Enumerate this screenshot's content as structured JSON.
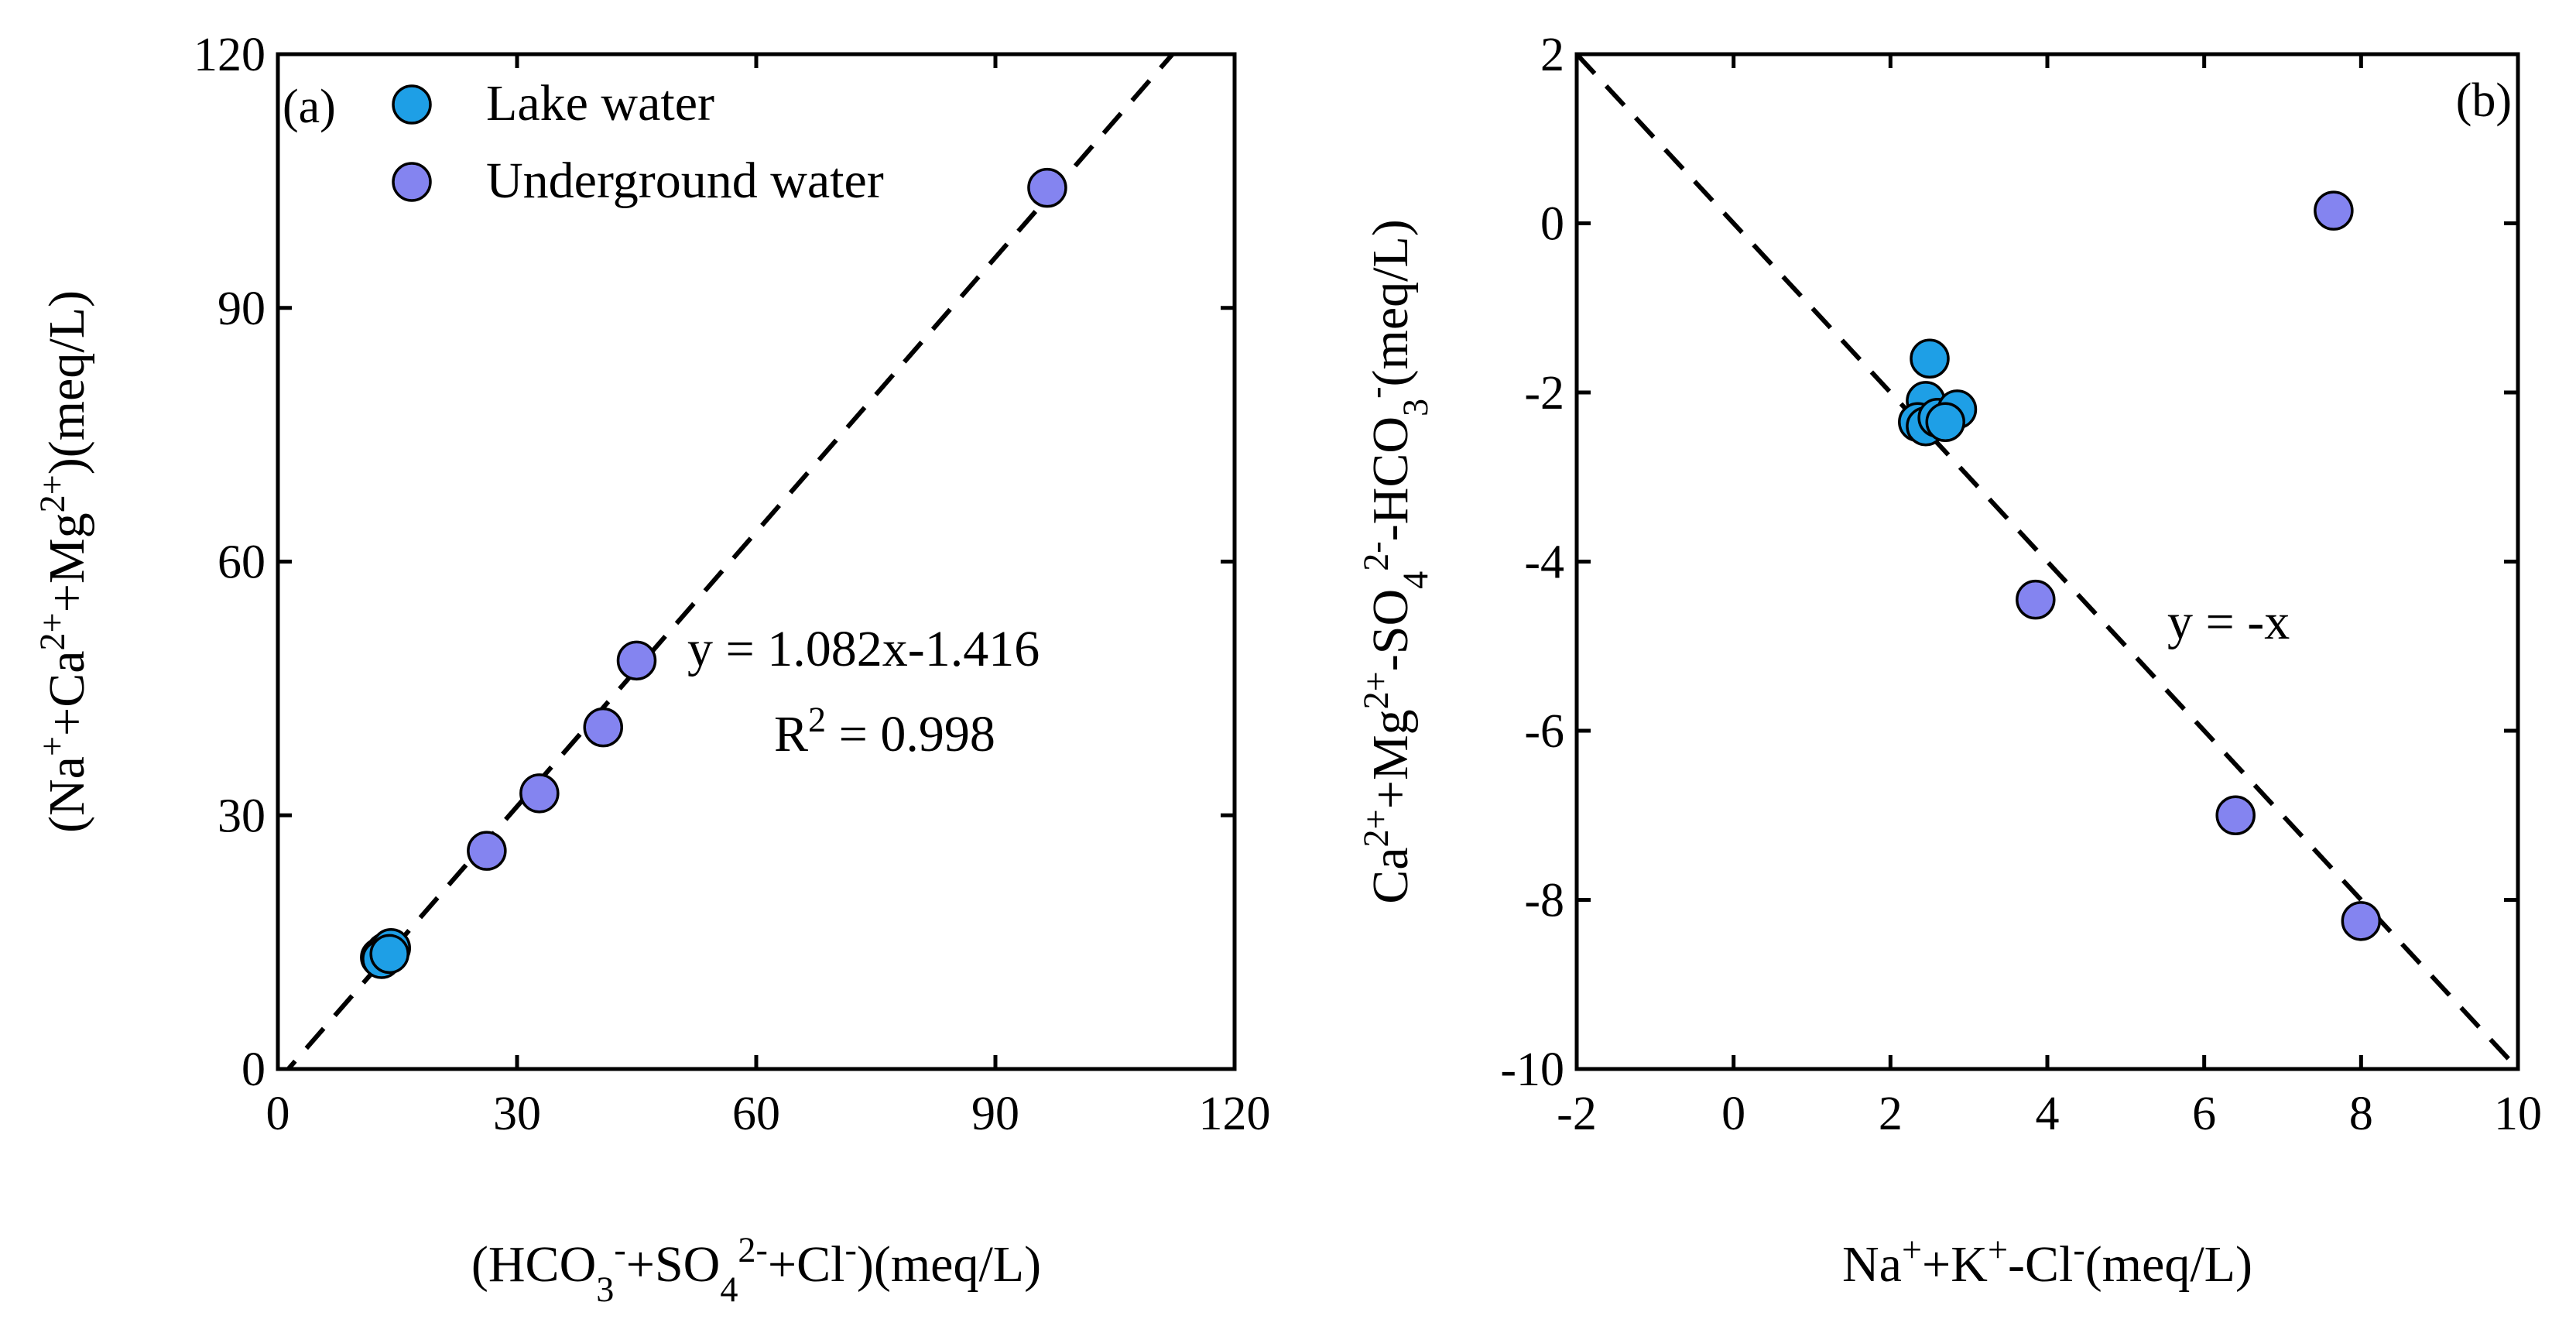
{
  "colors": {
    "lake": "#1E9FE6",
    "underground": "#8484F0",
    "axis": "#000000",
    "background": "#FFFFFF"
  },
  "chart_data": [
    {
      "type": "scatter",
      "panel_label": "(a)",
      "xlabel": {
        "parts": [
          {
            "t": "(HCO"
          },
          {
            "t": "3",
            "s": "sub"
          },
          {
            "t": "-",
            "s": "sup"
          },
          {
            "t": "+SO"
          },
          {
            "t": "4",
            "s": "sub"
          },
          {
            "t": "2-",
            "s": "sup"
          },
          {
            "t": "+Cl"
          },
          {
            "t": "-",
            "s": "sup"
          },
          {
            "t": ")(meq/L)"
          }
        ]
      },
      "ylabel": {
        "parts": [
          {
            "t": "(Na"
          },
          {
            "t": "+",
            "s": "sup"
          },
          {
            "t": "+Ca"
          },
          {
            "t": "2+",
            "s": "sup"
          },
          {
            "t": "+Mg"
          },
          {
            "t": "2+",
            "s": "sup"
          },
          {
            "t": ")(meq/L)"
          }
        ]
      },
      "xlim": [
        0,
        120
      ],
      "ylim": [
        0,
        120
      ],
      "xticks": [
        0,
        30,
        60,
        90,
        120
      ],
      "yticks": [
        0,
        30,
        60,
        90,
        120
      ],
      "xtick_labels": [
        "0",
        "30",
        "60",
        "90",
        "120"
      ],
      "ytick_labels": [
        "0",
        "30",
        "60",
        "90",
        "120"
      ],
      "legend": {
        "position": "top-left",
        "entries": [
          {
            "label": "Lake water",
            "series": "lake"
          },
          {
            "label": "Underground water",
            "series": "underground"
          }
        ]
      },
      "series": [
        {
          "name": "Lake water",
          "key": "lake",
          "points": [
            {
              "x": 12.8,
              "y": 13.2
            },
            {
              "x": 13.5,
              "y": 13.8
            },
            {
              "x": 14.2,
              "y": 14.3
            },
            {
              "x": 13.0,
              "y": 13.0
            },
            {
              "x": 14.0,
              "y": 13.6
            }
          ]
        },
        {
          "name": "Underground water",
          "key": "underground",
          "points": [
            {
              "x": 26.2,
              "y": 25.8
            },
            {
              "x": 32.8,
              "y": 32.6
            },
            {
              "x": 40.8,
              "y": 40.4
            },
            {
              "x": 45.0,
              "y": 48.3
            },
            {
              "x": 96.5,
              "y": 104.2
            }
          ]
        }
      ],
      "fit_line": {
        "slope": 1.082,
        "intercept": -1.416
      },
      "annotations": [
        {
          "key": "equation",
          "parts": [
            {
              "t": "y = 1.082x-1.416"
            }
          ]
        },
        {
          "key": "r2",
          "parts": [
            {
              "t": "R"
            },
            {
              "t": "2",
              "s": "sup"
            },
            {
              "t": " = 0.998"
            }
          ]
        }
      ]
    },
    {
      "type": "scatter",
      "panel_label": "(b)",
      "xlabel": {
        "parts": [
          {
            "t": "Na"
          },
          {
            "t": "+",
            "s": "sup"
          },
          {
            "t": "+K"
          },
          {
            "t": "+",
            "s": "sup"
          },
          {
            "t": "-Cl"
          },
          {
            "t": "-",
            "s": "sup"
          },
          {
            "t": "(meq/L)"
          }
        ]
      },
      "ylabel": {
        "parts": [
          {
            "t": "Ca"
          },
          {
            "t": "2+",
            "s": "sup"
          },
          {
            "t": "+Mg"
          },
          {
            "t": "2+",
            "s": "sup"
          },
          {
            "t": "-SO"
          },
          {
            "t": "4",
            "s": "sub"
          },
          {
            "t": "2-",
            "s": "sup"
          },
          {
            "t": "-HCO"
          },
          {
            "t": "3",
            "s": "sub"
          },
          {
            "t": "-",
            "s": "sup"
          },
          {
            "t": "(meq/L)"
          }
        ]
      },
      "xlim": [
        -2,
        10
      ],
      "ylim": [
        -10,
        2
      ],
      "xticks": [
        -2,
        0,
        2,
        4,
        6,
        8,
        10
      ],
      "yticks": [
        -10,
        -8,
        -6,
        -4,
        -2,
        0,
        2
      ],
      "xtick_labels": [
        "-2",
        "0",
        "2",
        "4",
        "6",
        "8",
        "10"
      ],
      "ytick_labels": [
        "-10",
        "-8",
        "-6",
        "-4",
        "-2",
        "0",
        "2"
      ],
      "series": [
        {
          "name": "Lake water",
          "key": "lake",
          "points": [
            {
              "x": 2.5,
              "y": -1.6
            },
            {
              "x": 2.45,
              "y": -2.1
            },
            {
              "x": 2.35,
              "y": -2.35
            },
            {
              "x": 2.45,
              "y": -2.4
            },
            {
              "x": 2.6,
              "y": -2.3
            },
            {
              "x": 2.85,
              "y": -2.2
            },
            {
              "x": 2.7,
              "y": -2.35
            }
          ]
        },
        {
          "name": "Underground water",
          "key": "underground",
          "points": [
            {
              "x": 7.65,
              "y": 0.15
            },
            {
              "x": 3.85,
              "y": -4.45
            },
            {
              "x": 6.4,
              "y": -7.0
            },
            {
              "x": 8.0,
              "y": -8.25
            }
          ]
        }
      ],
      "fit_line": {
        "slope": -1,
        "intercept": 0
      },
      "annotations": [
        {
          "key": "equation",
          "parts": [
            {
              "t": "y = -x"
            }
          ]
        }
      ]
    }
  ]
}
